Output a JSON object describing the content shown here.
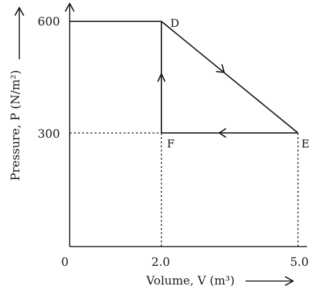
{
  "chart_data": {
    "type": "line",
    "title": "",
    "xlabel": "Volume, V (m³)",
    "ylabel": "Pressure, P (N/m²)",
    "x_ticks": [
      "0",
      "2.0",
      "5.0"
    ],
    "y_ticks": [
      "600",
      "300"
    ],
    "xlim": [
      0,
      5.0
    ],
    "ylim": [
      0,
      600
    ],
    "points": [
      {
        "name": "D",
        "x": 2.0,
        "y": 600
      },
      {
        "name": "E",
        "x": 5.0,
        "y": 300
      },
      {
        "name": "F",
        "x": 2.0,
        "y": 300
      }
    ],
    "cycle": [
      "D",
      "E",
      "F",
      "D"
    ],
    "grid": false
  }
}
